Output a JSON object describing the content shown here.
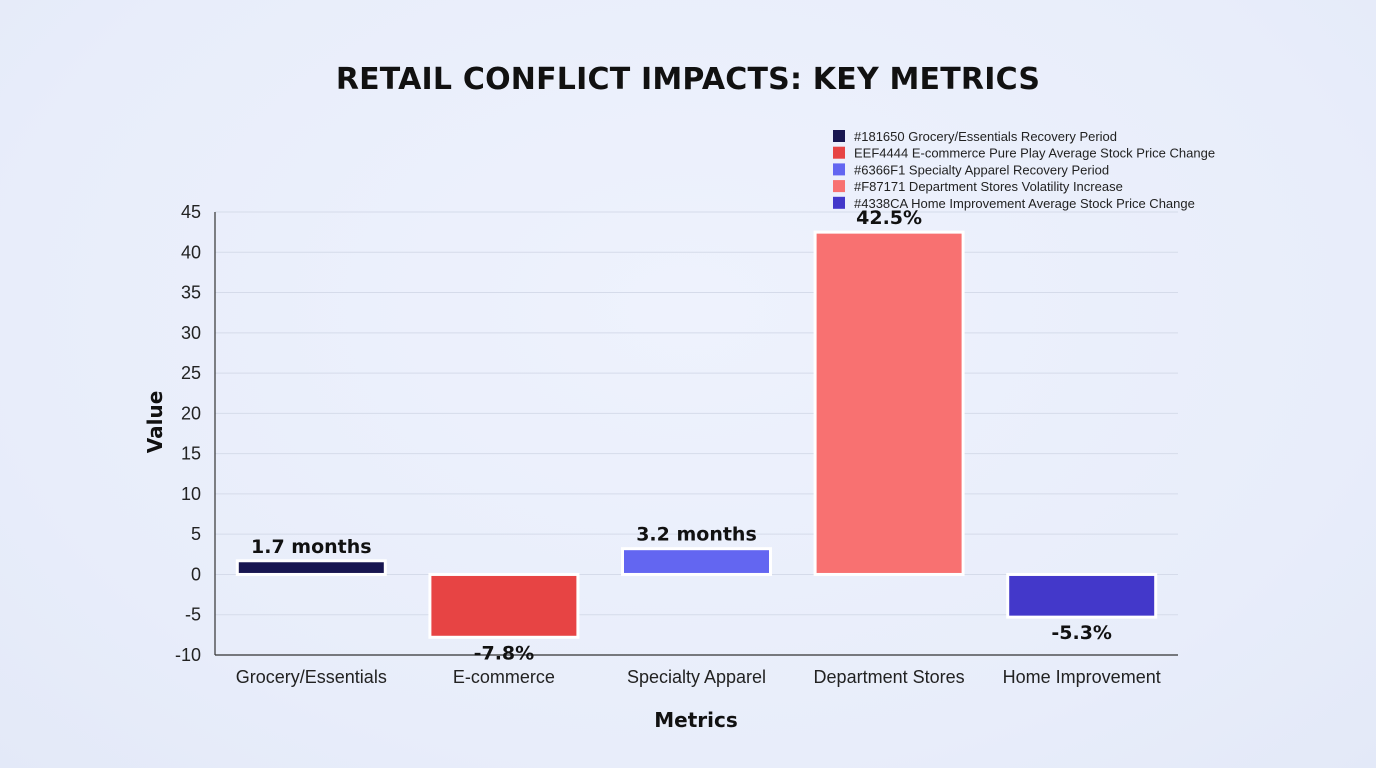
{
  "chart_data": {
    "type": "bar",
    "title": "RETAIL CONFLICT IMPACTS: KEY METRICS",
    "xlabel": "Metrics",
    "ylabel": "Value",
    "ylim": [
      -10,
      45
    ],
    "yticks": [
      45,
      40,
      35,
      30,
      25,
      20,
      15,
      10,
      5,
      0,
      -5,
      -10
    ],
    "grid": true,
    "legend_position": "top-right",
    "categories": [
      "Grocery/Essentials",
      "E-commerce",
      "Specialty Apparel",
      "Department Stores",
      "Home Improvement"
    ],
    "values": [
      1.7,
      -7.8,
      3.2,
      42.5,
      -5.3
    ],
    "data_labels": [
      "1.7 months",
      "-7.8%",
      "3.2 months",
      "42.5%",
      "-5.3%"
    ],
    "colors": [
      "#181650",
      "#E74444",
      "#6366F1",
      "#F87171",
      "#4338CA"
    ],
    "legend": [
      {
        "label": "#181650 Grocery/Essentials Recovery Period",
        "color": "#181650"
      },
      {
        "label": "EEF4444 E-commerce Pure Play Average Stock Price Change",
        "color": "#E74444"
      },
      {
        "label": "#6366F1 Specialty Apparel Recovery Period",
        "color": "#6366F1"
      },
      {
        "label": "#F87171 Department Stores Volatility Increase",
        "color": "#F87171"
      },
      {
        "label": "#4338CA Home Improvement Average Stock Price Change",
        "color": "#4338CA"
      }
    ]
  }
}
